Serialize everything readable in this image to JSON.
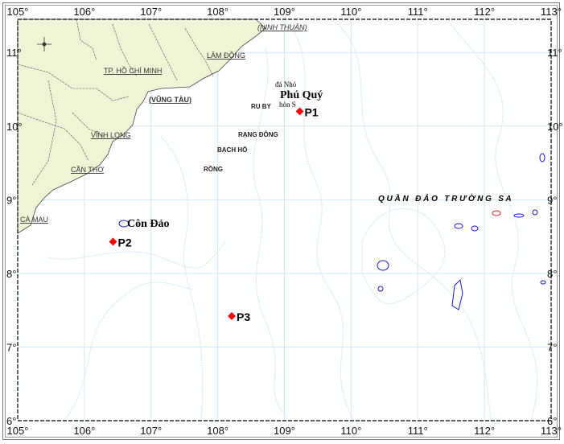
{
  "map": {
    "lon_ticks": [
      "105°",
      "106°",
      "107°",
      "108°",
      "109°",
      "110°",
      "111°",
      "112°",
      "113°"
    ],
    "lat_ticks": [
      "11°",
      "10°",
      "9°",
      "8°",
      "7°",
      "6°"
    ],
    "extent": {
      "lon": [
        105,
        113
      ],
      "lat": [
        6,
        11.45
      ]
    },
    "colors": {
      "land": "#eef5d6",
      "sea": "#ffffff",
      "grid": "#cfe9f7",
      "contour": "#cbe6f2",
      "point": "#ff0000",
      "island": "#1a1acc"
    },
    "provinces": [
      "(NINH THUẬN)",
      "LÂM ĐỒNG",
      "TP. HỒ CHÍ MINH",
      "(VŨNG TÀU)",
      "VĨNH LONG",
      "CẦN THƠ",
      "CÀ MAU"
    ],
    "oil_fields": [
      "RU BY",
      "RẠNG ĐÔNG",
      "BẠCH HỔ",
      "RỒNG"
    ],
    "islands": {
      "phu_quy": "Phú Quý",
      "da_nho": "đá Nhỏ",
      "hon_s": "hòn S",
      "con_dao": "Côn Đảo",
      "truong_sa": "Q U Ầ N   Đ Ả O   T R Ư Ờ N G   S A"
    },
    "points": [
      {
        "name": "P1",
        "lon": 109.23,
        "lat": 10.2
      },
      {
        "name": "P2",
        "lon": 106.43,
        "lat": 8.43
      },
      {
        "name": "P3",
        "lon": 108.21,
        "lat": 7.42
      }
    ],
    "compass": "north-arrow-icon"
  }
}
